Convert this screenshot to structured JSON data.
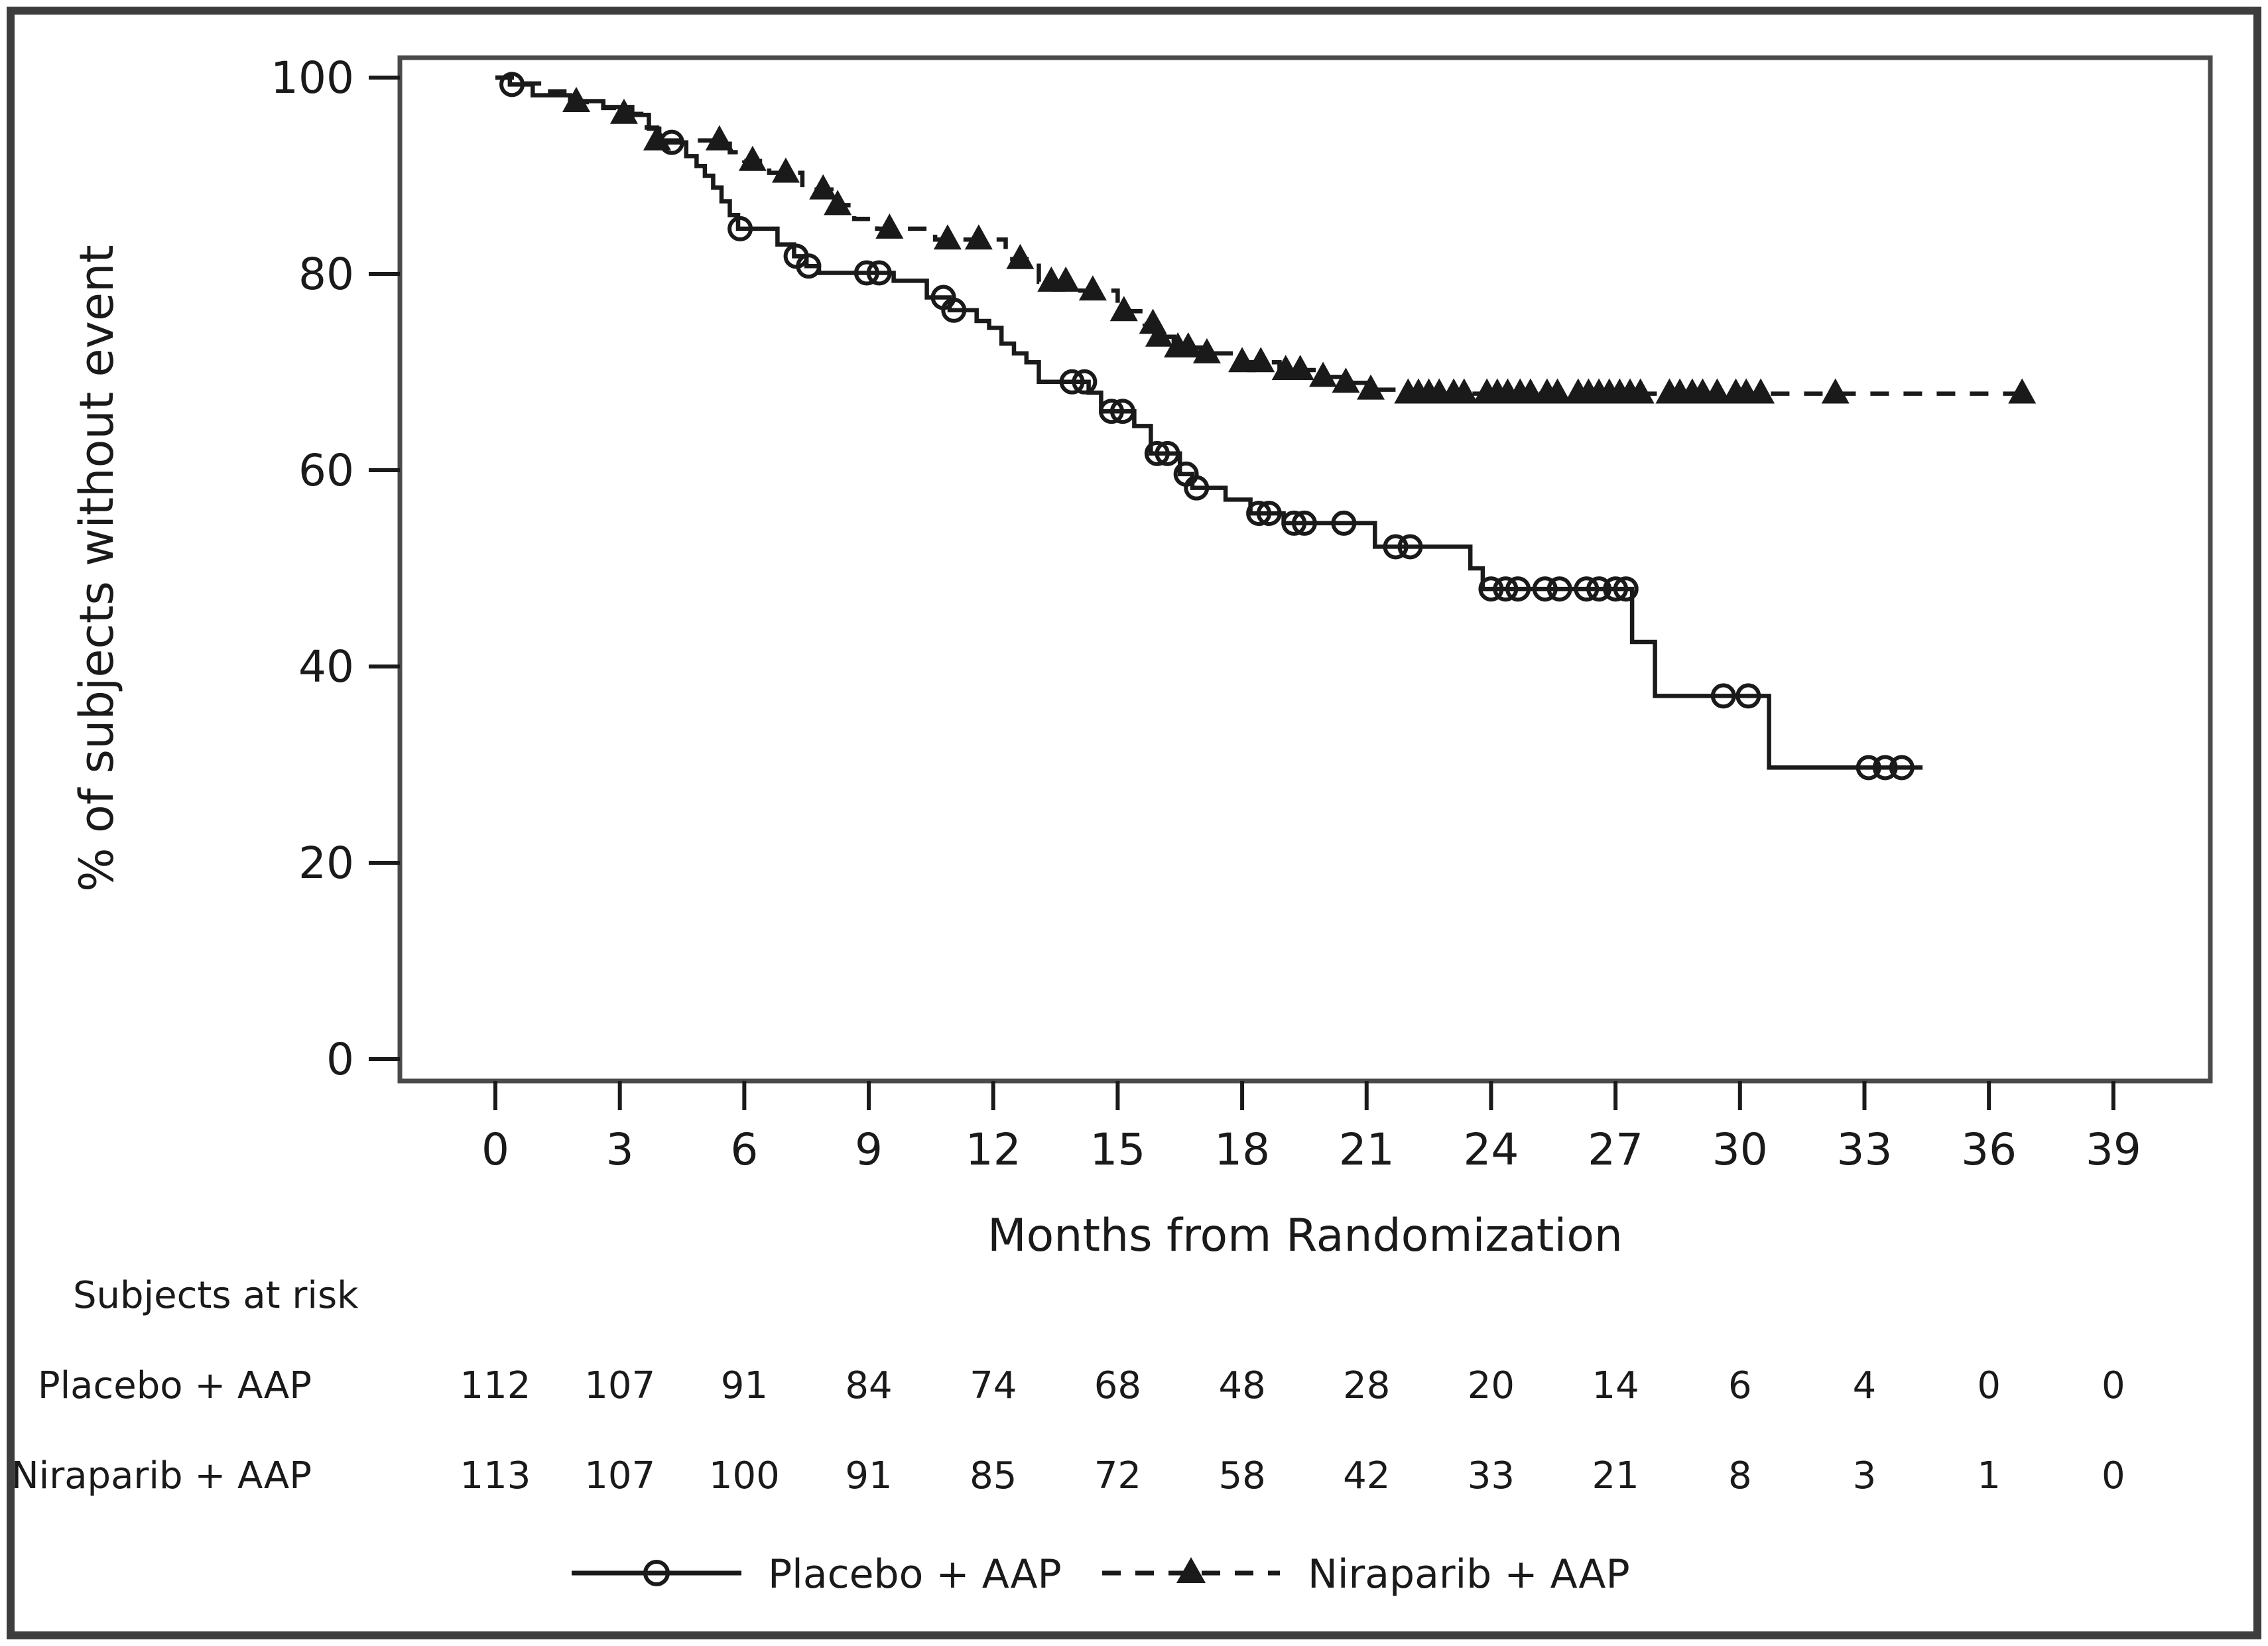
{
  "colors": {
    "ink": "#1a1a1a",
    "plot_border": "#4a4a4a",
    "figure_border": "#3d3d3d",
    "background": "#ffffff"
  },
  "chart_data": {
    "type": "line",
    "subtype": "kaplan-meier-step",
    "title": "",
    "xlabel": "Months from Randomization",
    "ylabel": "% of subjects without event",
    "x_ticks": [
      0,
      3,
      6,
      9,
      12,
      15,
      18,
      21,
      24,
      27,
      30,
      33,
      36,
      39
    ],
    "y_ticks": [
      0,
      20,
      40,
      60,
      80,
      100
    ],
    "xlim": [
      -2.3,
      41.3
    ],
    "ylim": [
      -2.2,
      102.0
    ],
    "grid": false,
    "legend_position": "bottom",
    "series": [
      {
        "name": "Placebo + AAP",
        "line_style": "solid",
        "marker": "circle",
        "end_t": 34.4,
        "steps": [
          [
            0,
            100
          ],
          [
            0.35,
            99.3
          ],
          [
            0.9,
            98.2
          ],
          [
            1.8,
            97.6
          ],
          [
            2.6,
            97.0
          ],
          [
            3.3,
            96.2
          ],
          [
            3.7,
            94.8
          ],
          [
            3.95,
            93.4
          ],
          [
            4.6,
            92.0
          ],
          [
            4.85,
            91.0
          ],
          [
            5.05,
            90.0
          ],
          [
            5.25,
            88.8
          ],
          [
            5.45,
            87.4
          ],
          [
            5.65,
            86.0
          ],
          [
            5.85,
            84.6
          ],
          [
            6.8,
            83.0
          ],
          [
            7.2,
            81.8
          ],
          [
            7.5,
            80.8
          ],
          [
            7.8,
            80.1
          ],
          [
            9.6,
            79.3
          ],
          [
            10.4,
            77.6
          ],
          [
            10.95,
            76.3
          ],
          [
            11.6,
            75.2
          ],
          [
            11.9,
            74.5
          ],
          [
            12.2,
            72.9
          ],
          [
            12.5,
            71.9
          ],
          [
            12.8,
            71.0
          ],
          [
            13.1,
            69.0
          ],
          [
            14.3,
            67.9
          ],
          [
            14.6,
            66.0
          ],
          [
            15.4,
            64.5
          ],
          [
            15.8,
            61.7
          ],
          [
            16.5,
            59.6
          ],
          [
            16.8,
            58.2
          ],
          [
            17.6,
            57.0
          ],
          [
            18.2,
            55.6
          ],
          [
            19.0,
            54.6
          ],
          [
            21.2,
            52.2
          ],
          [
            23.5,
            50.0
          ],
          [
            23.8,
            47.9
          ],
          [
            27.4,
            42.5
          ],
          [
            27.95,
            37.0
          ],
          [
            30.7,
            29.7
          ]
        ],
        "censor_marks_t": [
          0.4,
          4.25,
          5.9,
          7.25,
          7.55,
          8.95,
          9.25,
          10.8,
          11.05,
          13.9,
          14.2,
          14.85,
          15.12,
          15.95,
          16.2,
          16.65,
          16.9,
          18.4,
          18.65,
          19.25,
          19.5,
          20.45,
          21.7,
          22.05,
          24.0,
          24.35,
          24.65,
          25.3,
          25.65,
          26.3,
          26.6,
          27.0,
          27.25,
          29.6,
          30.2,
          33.1,
          33.5,
          33.9
        ]
      },
      {
        "name": "Niraparib + AAP",
        "line_style": "dashed",
        "marker": "triangle",
        "end_t": 36.8,
        "steps": [
          [
            0,
            100
          ],
          [
            0.5,
            99.4
          ],
          [
            1.2,
            98.6
          ],
          [
            1.9,
            97.5
          ],
          [
            2.6,
            96.9
          ],
          [
            3.1,
            96.3
          ],
          [
            3.65,
            94.9
          ],
          [
            3.9,
            93.6
          ],
          [
            5.65,
            92.4
          ],
          [
            6.0,
            91.5
          ],
          [
            6.6,
            90.3
          ],
          [
            7.4,
            88.6
          ],
          [
            8.1,
            87.0
          ],
          [
            8.65,
            85.6
          ],
          [
            9.2,
            84.6
          ],
          [
            10.6,
            83.5
          ],
          [
            12.3,
            81.5
          ],
          [
            13.1,
            79.2
          ],
          [
            14.1,
            78.3
          ],
          [
            15.0,
            76.2
          ],
          [
            15.65,
            74.9
          ],
          [
            15.95,
            73.6
          ],
          [
            16.35,
            72.5
          ],
          [
            17.0,
            71.9
          ],
          [
            17.9,
            71.0
          ],
          [
            18.9,
            70.2
          ],
          [
            19.8,
            69.5
          ],
          [
            20.4,
            68.9
          ],
          [
            21.0,
            68.2
          ],
          [
            21.9,
            67.8
          ]
        ],
        "censor_marks_t": [
          1.95,
          3.1,
          3.9,
          5.4,
          6.2,
          7.0,
          7.9,
          8.25,
          9.5,
          10.9,
          11.65,
          12.65,
          13.4,
          13.75,
          14.4,
          15.15,
          15.85,
          16.0,
          16.45,
          16.7,
          17.15,
          18.0,
          18.45,
          19.05,
          19.4,
          19.95,
          20.5,
          21.1,
          22.0,
          22.25,
          22.5,
          22.75,
          23.1,
          23.35,
          23.9,
          24.15,
          24.4,
          24.7,
          24.95,
          25.35,
          25.6,
          26.1,
          26.35,
          26.6,
          26.85,
          27.1,
          27.35,
          27.6,
          28.3,
          28.55,
          28.85,
          29.1,
          29.45,
          29.9,
          30.15,
          30.5,
          32.3,
          36.8
        ]
      }
    ]
  },
  "risk_table": {
    "title": "Subjects at risk",
    "columns_months": [
      0,
      3,
      6,
      9,
      12,
      15,
      18,
      21,
      24,
      27,
      30,
      33,
      36,
      39
    ],
    "rows": [
      {
        "label": "Placebo + AAP",
        "values": [
          112,
          107,
          91,
          84,
          74,
          68,
          48,
          28,
          20,
          14,
          6,
          4,
          0,
          0
        ]
      },
      {
        "label": "Niraparib + AAP",
        "values": [
          113,
          107,
          100,
          91,
          85,
          72,
          58,
          42,
          33,
          21,
          8,
          3,
          1,
          0
        ]
      }
    ]
  },
  "legend": {
    "items": [
      {
        "label": "Placebo + AAP",
        "marker": "circle",
        "line_style": "solid"
      },
      {
        "label": "Niraparib + AAP",
        "marker": "triangle",
        "line_style": "dashed"
      }
    ]
  }
}
